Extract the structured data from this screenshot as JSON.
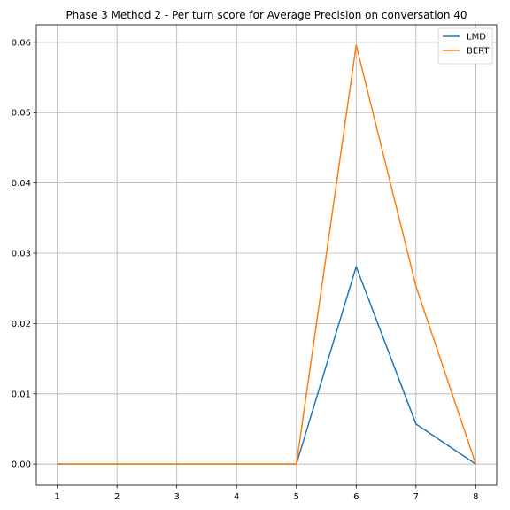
{
  "chart_data": {
    "type": "line",
    "title": "Phase 3 Method 2 - Per turn score for Average Precision on conversation 40",
    "xlabel": "",
    "ylabel": "",
    "x": [
      1,
      2,
      3,
      4,
      5,
      6,
      7,
      8
    ],
    "xlim": [
      0.65,
      8.35
    ],
    "ylim": [
      -0.003,
      0.0625
    ],
    "x_ticks": [
      "1",
      "2",
      "3",
      "4",
      "5",
      "6",
      "7",
      "8"
    ],
    "y_ticks": [
      "0.00",
      "0.01",
      "0.02",
      "0.03",
      "0.04",
      "0.05",
      "0.06"
    ],
    "grid": true,
    "legend_position": "top-right",
    "series": [
      {
        "name": "LMD",
        "color": "#1f77b4",
        "values": [
          0,
          0,
          0,
          0,
          0,
          0.0281,
          0.0057,
          0
        ]
      },
      {
        "name": "BERT",
        "color": "#ff7f0e",
        "values": [
          0,
          0,
          0,
          0,
          0,
          0.0596,
          0.0253,
          0
        ]
      }
    ]
  }
}
